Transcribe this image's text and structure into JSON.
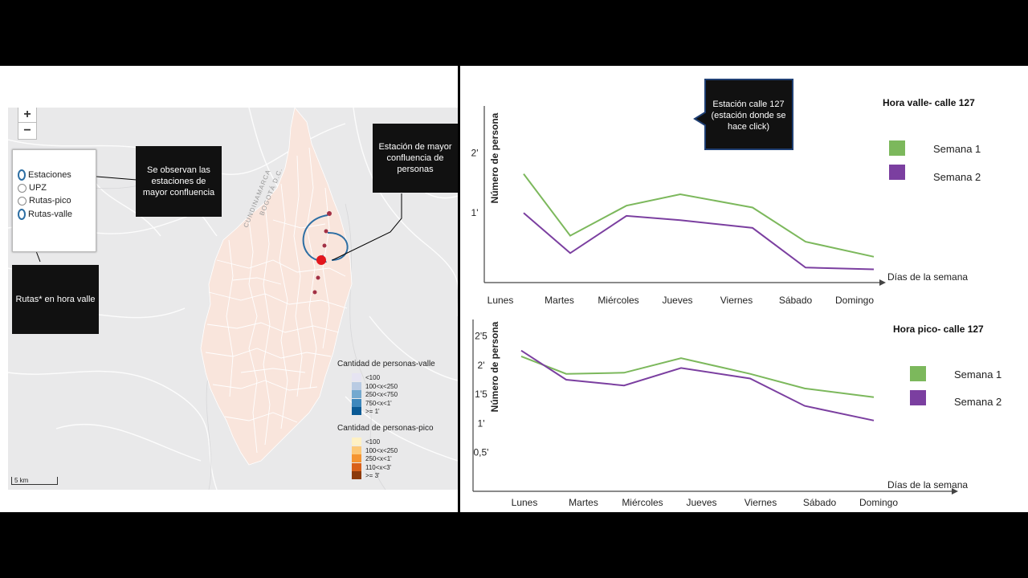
{
  "map": {
    "zoom_in_label": "+",
    "zoom_out_label": "−",
    "layers": [
      {
        "label": "Estaciones",
        "selected": true
      },
      {
        "label": "UPZ",
        "selected": false
      },
      {
        "label": "Rutas-pico",
        "selected": false
      },
      {
        "label": "Rutas-valle",
        "selected": true
      }
    ],
    "region_labels": [
      "CUNDINAMARCA",
      "BOGOTÁ D.C."
    ],
    "callouts": {
      "stations": "Se observan las estaciones de mayor confluencia",
      "max_station": "Estación de mayor confluencia de personas",
      "routes": "Rutas* en hora valle"
    },
    "legend_valle": {
      "title": "Cantidad de personas-valle",
      "items": [
        {
          "label": "<100",
          "color": "#e6e4f2"
        },
        {
          "label": "100<x<250",
          "color": "#b9cbe3"
        },
        {
          "label": "250<x<750",
          "color": "#74a9cf"
        },
        {
          "label": "750<x<1'",
          "color": "#3e88bd"
        },
        {
          "label": ">= 1'",
          "color": "#0b5a95"
        }
      ]
    },
    "legend_pico": {
      "title": "Cantidad de personas-pico",
      "items": [
        {
          "label": "<100",
          "color": "#fff1c4"
        },
        {
          "label": "100<x<250",
          "color": "#fdc877"
        },
        {
          "label": "250<x<1'",
          "color": "#f59430"
        },
        {
          "label": "110<x<3'",
          "color": "#d9611a"
        },
        {
          "label": ">= 3'",
          "color": "#8c3a0b"
        }
      ]
    },
    "scale_label": "5 km"
  },
  "station_note": "Estación calle 127 (estación donde se hace click)",
  "chart_data": [
    {
      "type": "line",
      "title": "Hora valle- calle 127",
      "xlabel": "Días de la semana",
      "ylabel": "Número de persona",
      "categories": [
        "Lunes",
        "Martes",
        "Miércoles",
        "Jueves",
        "Viernes",
        "Sábado",
        "Domingo"
      ],
      "y_tick_labels": [
        "1'",
        "2'"
      ],
      "y_ticks": [
        1,
        2
      ],
      "ylim": [
        0,
        2.7
      ],
      "series": [
        {
          "name": "Semana 1",
          "color": "#7cb85c",
          "values": [
            1.65,
            0.62,
            1.12,
            1.31,
            1.09,
            0.52,
            0.27
          ]
        },
        {
          "name": "Semana 2",
          "color": "#7b3fa0",
          "values": [
            1.0,
            0.33,
            0.95,
            0.88,
            0.75,
            0.09,
            0.06
          ]
        }
      ]
    },
    {
      "type": "line",
      "title": "Hora pico- calle 127",
      "xlabel": "Días de la semana",
      "ylabel": "Número de persona",
      "categories": [
        "Lunes",
        "Martes",
        "Miércoles",
        "Jueves",
        "Viernes",
        "Sábado",
        "Domingo"
      ],
      "y_tick_labels": [
        "0,5'",
        "1'",
        "1'5",
        "2'",
        "2'5"
      ],
      "y_ticks": [
        0.5,
        1,
        1.5,
        2,
        2.5
      ],
      "ylim": [
        0,
        2.7
      ],
      "series": [
        {
          "name": "Semana 1",
          "color": "#7cb85c",
          "values": [
            2.15,
            1.85,
            1.87,
            2.12,
            1.85,
            1.6,
            1.45
          ]
        },
        {
          "name": "Semana 2",
          "color": "#7b3fa0",
          "values": [
            2.25,
            1.75,
            1.65,
            1.95,
            1.77,
            1.3,
            1.05
          ]
        }
      ]
    }
  ]
}
